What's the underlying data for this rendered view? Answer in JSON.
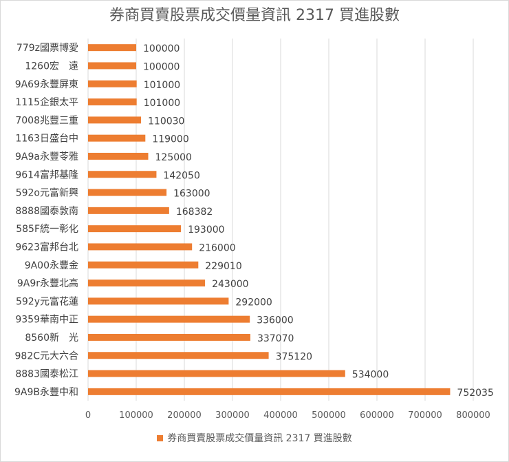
{
  "chart_data": {
    "type": "bar",
    "orientation": "horizontal",
    "title": "券商買賣股票成交價量資訊 2317 買進股數",
    "categories": [
      "779z國票博愛",
      "1260宏　遠",
      "9A69永豐屏東",
      "1115企銀太平",
      "7008兆豐三重",
      "1163日盛台中",
      "9A9a永豐苓雅",
      "9614富邦基隆",
      "592o元富新興",
      "8888國泰敦南",
      "585F統一彰化",
      "9623富邦台北",
      "9A00永豐金",
      "9A9r永豐北高",
      "592y元富花蓮",
      "9359華南中正",
      "8560新　光",
      "982C元大六合",
      "8883國泰松江",
      "9A9B永豐中和"
    ],
    "series": [
      {
        "name": "券商買賣股票成交價量資訊 2317 買進股數",
        "values": [
          100000,
          100000,
          101000,
          101000,
          110030,
          119000,
          125000,
          142050,
          163000,
          168382,
          193000,
          216000,
          229010,
          243000,
          292000,
          336000,
          337070,
          375120,
          534000,
          752035
        ],
        "data_labels": [
          "100000",
          "100000",
          "101000",
          "101000",
          "110030",
          "119000",
          "125000",
          "142050",
          "163000",
          "168382",
          "193000",
          "216000",
          "229010",
          "243000",
          "292000",
          "336000",
          "337070",
          "375120",
          "534000",
          "752035"
        ]
      }
    ],
    "x_ticks": [
      "0",
      "100000",
      "200000",
      "300000",
      "400000",
      "500000",
      "600000",
      "700000",
      "800000"
    ],
    "xlim": [
      0,
      800000
    ],
    "grid": "vertical",
    "legend_position": "bottom",
    "bar_color": "#ED7D31"
  }
}
